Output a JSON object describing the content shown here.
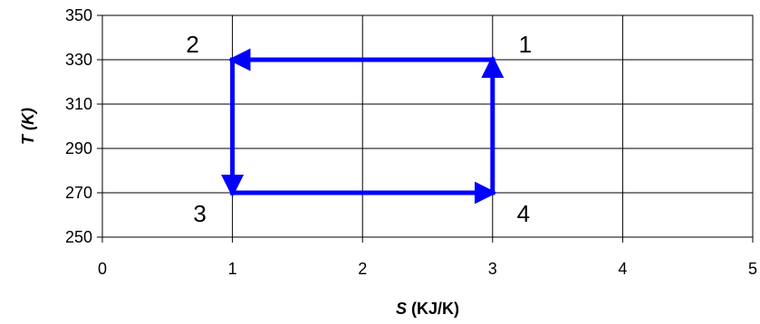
{
  "chart_data": {
    "type": "line",
    "title": "",
    "xlabel": {
      "symbol": "S",
      "unit": " (KJ/K)"
    },
    "ylabel": {
      "symbol": "T",
      "unit": " (K)"
    },
    "xlim": [
      0,
      5
    ],
    "ylim": [
      250,
      350
    ],
    "xticks": [
      "0",
      "1",
      "2",
      "3",
      "4",
      "5"
    ],
    "yticks": [
      "250",
      "270",
      "290",
      "310",
      "330",
      "350"
    ],
    "grid": true,
    "series": [
      {
        "color": "#0000ff",
        "arrows": true,
        "segments": [
          {
            "from": [
              3,
              330
            ],
            "to": [
              1,
              330
            ]
          },
          {
            "from": [
              1,
              330
            ],
            "to": [
              1,
              270
            ]
          },
          {
            "from": [
              1,
              270
            ],
            "to": [
              3,
              270
            ]
          },
          {
            "from": [
              3,
              270
            ],
            "to": [
              3,
              330
            ]
          }
        ]
      }
    ],
    "annotations": [
      {
        "text": "1",
        "x": 3,
        "y": 330
      },
      {
        "text": "2",
        "x": 1,
        "y": 330
      },
      {
        "text": "3",
        "x": 1,
        "y": 270
      },
      {
        "text": "4",
        "x": 3,
        "y": 270
      }
    ]
  }
}
